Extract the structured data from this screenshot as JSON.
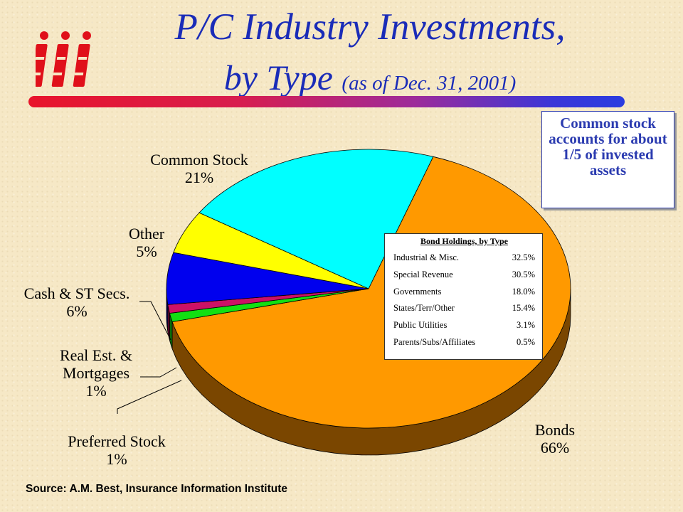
{
  "title": {
    "line1": "P/C Industry Investments,",
    "line2": "by Type",
    "sub": "(as of Dec. 31, 2001)"
  },
  "logo": {
    "text": "iii"
  },
  "callout": "Common stock accounts for about 1/5 of invested assets",
  "bond_box": {
    "title": "Bond Holdings, by Type",
    "rows": [
      {
        "label": "Industrial & Misc.",
        "value": "32.5%"
      },
      {
        "label": "Special Revenue",
        "value": "30.5%"
      },
      {
        "label": "Governments",
        "value": "18.0%"
      },
      {
        "label": "States/Terr/Other",
        "value": "15.4%"
      },
      {
        "label": "Public Utilities",
        "value": "3.1%"
      },
      {
        "label": "Parents/Subs/Affiliates",
        "value": "0.5%"
      }
    ]
  },
  "labels": {
    "common_stock": [
      "Common Stock",
      "21%"
    ],
    "other": [
      "Other",
      "5%"
    ],
    "cash": [
      "Cash & ST Secs.",
      "6%"
    ],
    "real_estate": [
      "Real Est. &",
      "Mortgages",
      "1%"
    ],
    "preferred": [
      "Preferred Stock",
      "1%"
    ],
    "bonds": [
      "Bonds",
      "66%"
    ]
  },
  "source": "Source:  A.M. Best, Insurance Information Institute",
  "chart_data": {
    "type": "pie",
    "title": "P/C Industry Investments, by Type (as of Dec. 31, 2001)",
    "slices": [
      {
        "name": "Bonds",
        "value": 66,
        "color": "#ff9900",
        "side": "#7a4600"
      },
      {
        "name": "Preferred Stock",
        "value": 1,
        "color": "#12e012",
        "side": "#0a6a0a"
      },
      {
        "name": "Real Est. & Mortgages",
        "value": 1,
        "color": "#cc1166",
        "side": "#660833"
      },
      {
        "name": "Cash & ST Secs.",
        "value": 6,
        "color": "#0000ee",
        "side": "#000077"
      },
      {
        "name": "Other",
        "value": 5,
        "color": "#ffff00",
        "side": "#7f7f00"
      },
      {
        "name": "Common Stock",
        "value": 21,
        "color": "#00ffff",
        "side": "#007f7f"
      }
    ]
  }
}
